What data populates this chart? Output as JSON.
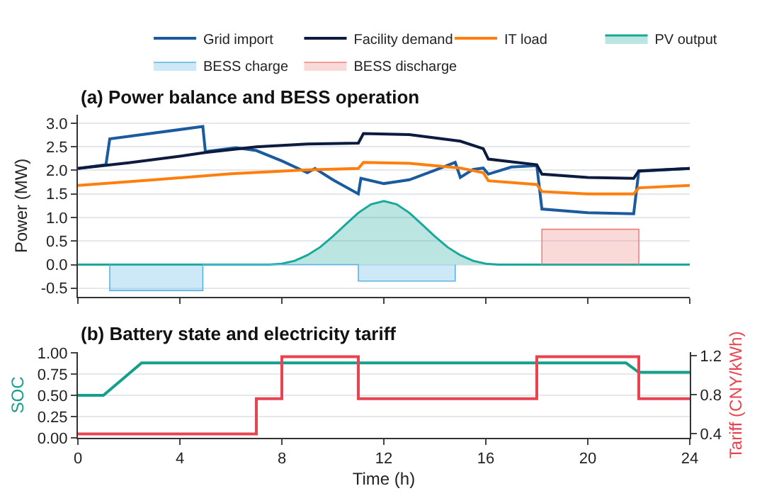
{
  "chart_data": [
    {
      "type": "line",
      "title": "(a) Power balance and BESS operation",
      "ylabel": "Power (MW)",
      "xlim": [
        0,
        24
      ],
      "xticks": [
        0,
        4,
        8,
        12,
        16,
        20,
        24
      ],
      "ylim": [
        -0.68,
        3.18
      ],
      "yticks": [
        {
          "value": -0.5,
          "label": "-0.5"
        },
        {
          "value": 0,
          "label": "0.0"
        },
        {
          "value": 0.5,
          "label": "0.5"
        },
        {
          "value": 1,
          "label": "1.0"
        },
        {
          "value": 1.5,
          "label": "1.5"
        },
        {
          "value": 2,
          "label": "2.0"
        },
        {
          "value": 2.5,
          "label": "2.5"
        },
        {
          "value": 3,
          "label": "3.0"
        }
      ],
      "tick_labels": "y",
      "grid": "y",
      "legend": "top",
      "marker": "none",
      "line_style": "solid",
      "series": [
        {
          "name": "Grid import",
          "color": "#1a5a9e",
          "x": [
            0,
            1.1,
            1.25,
            4.9,
            5.0,
            6.2,
            7,
            8,
            8.8,
            9.0,
            9.3,
            10,
            11.0,
            11.1,
            12,
            13,
            14,
            14.8,
            15.0,
            15.5,
            15.9,
            16.1,
            17,
            18,
            18.2,
            20,
            21.8,
            22,
            24
          ],
          "values": [
            2.04,
            2.12,
            2.67,
            2.93,
            2.4,
            2.48,
            2.42,
            2.2,
            2.0,
            1.95,
            2.04,
            1.8,
            1.5,
            1.83,
            1.72,
            1.8,
            2.0,
            2.17,
            1.85,
            2.02,
            2.05,
            1.92,
            2.07,
            2.1,
            1.18,
            1.1,
            1.08,
            1.98,
            2.04
          ]
        },
        {
          "name": "Facility demand",
          "color": "#0d1b3e",
          "x": [
            0,
            2,
            4,
            5,
            7,
            9,
            11,
            11.2,
            13,
            15,
            15.9,
            16.1,
            18,
            18.2,
            20,
            21.8,
            22,
            24
          ],
          "values": [
            2.04,
            2.16,
            2.3,
            2.38,
            2.5,
            2.56,
            2.58,
            2.78,
            2.76,
            2.62,
            2.46,
            2.24,
            2.12,
            1.92,
            1.85,
            1.83,
            1.99,
            2.04
          ]
        },
        {
          "name": "IT load",
          "color": "#ff7f0e",
          "x": [
            0,
            3,
            6,
            9,
            11,
            11.2,
            13,
            15,
            15.9,
            16.1,
            18,
            18.2,
            20,
            21.8,
            22,
            24
          ],
          "values": [
            1.68,
            1.8,
            1.93,
            2.01,
            2.04,
            2.17,
            2.15,
            2.05,
            1.95,
            1.78,
            1.7,
            1.55,
            1.5,
            1.5,
            1.63,
            1.68
          ]
        },
        {
          "name": "PV output",
          "type": "area",
          "color": "#1aa89a",
          "x": [
            0,
            7.5,
            8,
            8.5,
            9,
            9.5,
            10,
            10.5,
            11,
            11.5,
            12,
            12.5,
            13,
            13.5,
            14,
            14.5,
            15,
            15.5,
            16,
            16.5,
            24
          ],
          "values": [
            0,
            0,
            0.02,
            0.08,
            0.2,
            0.37,
            0.6,
            0.85,
            1.1,
            1.28,
            1.35,
            1.28,
            1.1,
            0.85,
            0.6,
            0.37,
            0.2,
            0.08,
            0.02,
            0,
            0
          ]
        },
        {
          "name": "BESS charge",
          "type": "area",
          "color": "#5ab4e5",
          "x": [
            1.25,
            1.25,
            4.9,
            4.9,
            11.0,
            11.0,
            14.8,
            14.8
          ],
          "values": [
            0,
            -0.55,
            -0.55,
            0,
            0,
            -0.35,
            -0.35,
            0
          ]
        },
        {
          "name": "BESS discharge",
          "type": "area",
          "color": "#f08080",
          "x": [
            18.2,
            18.2,
            22,
            22
          ],
          "values": [
            0,
            0.75,
            0.75,
            0
          ]
        }
      ]
    },
    {
      "type": "line",
      "title": "(b) Battery state and electricity tariff",
      "xlabel": "Time (h)",
      "ylabel": "SOC",
      "y2label": "Tariff (CNY/kWh)",
      "xlim": [
        0,
        24
      ],
      "xticks": [
        0,
        4,
        8,
        12,
        16,
        20,
        24
      ],
      "ylim": [
        0,
        1.01
      ],
      "yticks": [
        {
          "value": 0,
          "label": "0.00"
        },
        {
          "value": 0.25,
          "label": "0.25"
        },
        {
          "value": 0.5,
          "label": "0.50"
        },
        {
          "value": 0.75,
          "label": "0.75"
        },
        {
          "value": 1,
          "label": "1.00"
        }
      ],
      "y2lim": [
        0.36,
        1.24
      ],
      "y2ticks": [
        0.4,
        0.8,
        1.2
      ],
      "grid": "y",
      "marker": "none",
      "line_style": "solid",
      "series": [
        {
          "color": "#12a08c",
          "x": [
            0,
            1,
            2.5,
            21.5,
            22,
            24
          ],
          "values": [
            0.5,
            0.5,
            0.88,
            0.88,
            0.77,
            0.77
          ]
        },
        {
          "type": "step",
          "axis": "y2",
          "color": "#e8434f",
          "x": [
            0,
            7,
            8,
            11,
            18,
            22,
            24
          ],
          "values": [
            0.4,
            0.76,
            1.19,
            0.76,
            1.19,
            0.76,
            0.76
          ]
        }
      ]
    }
  ]
}
